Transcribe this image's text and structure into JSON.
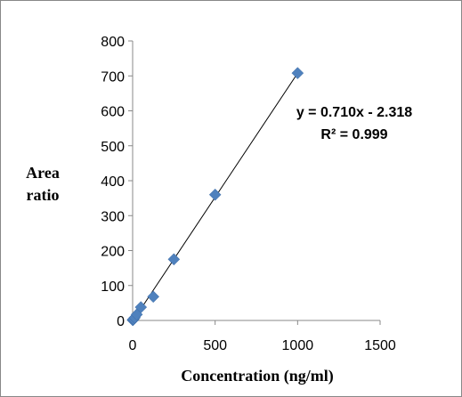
{
  "chart_data": {
    "type": "scatter",
    "title": "",
    "xlabel": "Concentration (ng/ml)",
    "ylabel_lines": [
      "Area",
      "ratio"
    ],
    "xlim": [
      0,
      1500
    ],
    "ylim": [
      0,
      800
    ],
    "xticks": [
      "0",
      "500",
      "1000",
      "1500"
    ],
    "yticks": [
      "0",
      "100",
      "200",
      "300",
      "400",
      "500",
      "600",
      "700",
      "800"
    ],
    "grid": false,
    "legend": "none",
    "marker_color": "#4f81bd",
    "trendline": {
      "type": "linear",
      "slope": 0.71,
      "intercept": -2.318,
      "equation_text": "y = 0.710x - 2.318",
      "r2_text": "R² = 0.999"
    },
    "series": [
      {
        "points": [
          {
            "x": 1,
            "y": 1
          },
          {
            "x": 2.5,
            "y": 2
          },
          {
            "x": 5,
            "y": 4
          },
          {
            "x": 12.5,
            "y": 8
          },
          {
            "x": 25,
            "y": 17
          },
          {
            "x": 50,
            "y": 38
          },
          {
            "x": 125,
            "y": 68
          },
          {
            "x": 250,
            "y": 175
          },
          {
            "x": 500,
            "y": 360
          },
          {
            "x": 1000,
            "y": 708
          }
        ]
      }
    ]
  }
}
